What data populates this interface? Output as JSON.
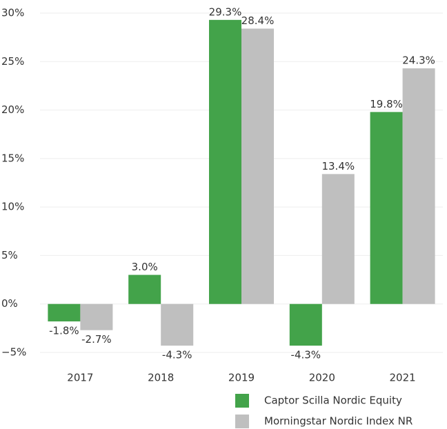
{
  "chart_data": {
    "type": "bar",
    "categories": [
      "2017",
      "2018",
      "2019",
      "2020",
      "2021"
    ],
    "series": [
      {
        "name": "Captor Scilla Nordic Equity",
        "color": "#43a34a",
        "values": [
          -1.8,
          3.0,
          29.3,
          -4.3,
          19.8
        ],
        "value_labels": [
          "-1.8%",
          "3.0%",
          "29.3%",
          "-4.3%",
          "19.8%"
        ]
      },
      {
        "name": "Morningstar Nordic Index NR",
        "color": "#bfbfbf",
        "values": [
          -2.7,
          -4.3,
          28.4,
          13.4,
          24.3
        ],
        "value_labels": [
          "-2.7%",
          "-4.3%",
          "28.4%",
          "13.4%",
          "24.3%"
        ]
      }
    ],
    "ylim": [
      -5,
      30
    ],
    "yticks": [
      {
        "value": -5,
        "label": "−5%"
      },
      {
        "value": 0,
        "label": "0%"
      },
      {
        "value": 5,
        "label": "5%"
      },
      {
        "value": 10,
        "label": "10%"
      },
      {
        "value": 15,
        "label": "15%"
      },
      {
        "value": 20,
        "label": "20%"
      },
      {
        "value": 25,
        "label": "25%"
      },
      {
        "value": 30,
        "label": "30%"
      }
    ],
    "grid": true
  }
}
